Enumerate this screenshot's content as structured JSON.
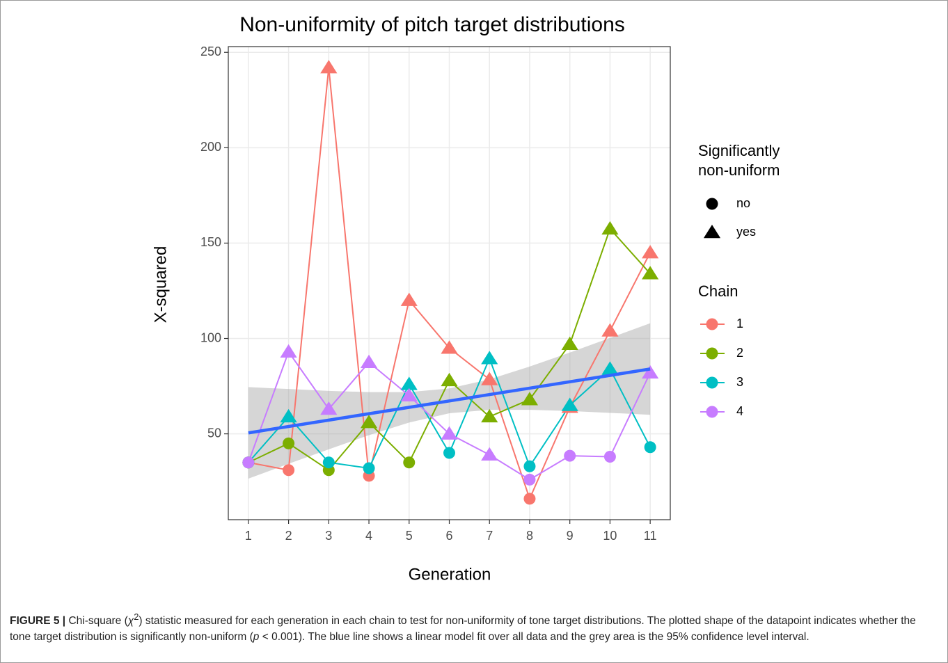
{
  "chart_data": {
    "type": "line",
    "title": "Non-uniformity of pitch target distributions",
    "x_label": "Generation",
    "y_label": "X-squared",
    "x": [
      1,
      2,
      3,
      4,
      5,
      6,
      7,
      8,
      9,
      10,
      11
    ],
    "xlim": [
      0.5,
      11.5
    ],
    "xticks": [
      1,
      2,
      3,
      4,
      5,
      6,
      7,
      8,
      9,
      10,
      11
    ],
    "ylim": [
      5,
      253
    ],
    "yticks": [
      50,
      100,
      150,
      200,
      250
    ],
    "grid": true,
    "legend_position": "right",
    "series": [
      {
        "name": "1",
        "color": "#F8766D",
        "values": [
          35,
          31,
          242,
          28,
          120,
          95,
          78.5,
          16,
          64,
          104,
          145
        ],
        "significant": [
          false,
          false,
          true,
          false,
          true,
          true,
          true,
          false,
          true,
          true,
          true
        ]
      },
      {
        "name": "2",
        "color": "#7CAE00",
        "values": [
          35,
          45,
          31,
          56,
          35,
          78,
          59,
          68,
          97,
          157.5,
          134
        ],
        "significant": [
          false,
          false,
          false,
          true,
          false,
          true,
          true,
          true,
          true,
          true,
          true
        ]
      },
      {
        "name": "3",
        "color": "#00BFC4",
        "values": [
          35,
          59,
          35,
          32,
          76,
          40,
          89.5,
          33,
          65,
          84,
          43
        ],
        "significant": [
          false,
          true,
          false,
          false,
          true,
          false,
          true,
          false,
          true,
          true,
          false
        ]
      },
      {
        "name": "4",
        "color": "#C77CFF",
        "values": [
          35,
          93,
          63,
          87.5,
          70,
          50,
          39,
          26,
          38.5,
          38,
          82
        ],
        "significant": [
          false,
          true,
          true,
          true,
          true,
          true,
          true,
          false,
          false,
          false,
          true
        ]
      }
    ],
    "fit": {
      "color": "#3366FF",
      "x": [
        1,
        11
      ],
      "values": [
        50.5,
        84
      ]
    },
    "band": {
      "color": "#999999",
      "x": [
        1,
        2,
        3,
        4,
        5,
        6,
        7,
        8,
        9,
        10,
        11
      ],
      "upper": [
        74.5,
        73.5,
        72.5,
        71.9,
        71.9,
        73.8,
        78.6,
        85.3,
        92.6,
        100.3,
        108
      ],
      "lower": [
        26.5,
        34.3,
        41.9,
        49.3,
        55.9,
        60.8,
        62.6,
        62.6,
        62,
        61,
        60
      ]
    },
    "shape_legend": {
      "title_lines": [
        "Significantly",
        "non-uniform"
      ],
      "labels": [
        "no",
        "yes"
      ]
    },
    "color_legend_title": "Chain"
  },
  "caption": {
    "label": "FIGURE 5 |",
    "parts": [
      "Chi-square (",
      "χ",
      "2",
      ") statistic measured for each generation in each chain to test for non-uniformity of tone target distributions. The plotted shape of the datapoint indicates whether the tone target distribution is significantly non-uniform (",
      "p",
      " < 0.001). The blue line shows a linear model fit over all data and the grey area is the 95% confidence level interval."
    ]
  }
}
